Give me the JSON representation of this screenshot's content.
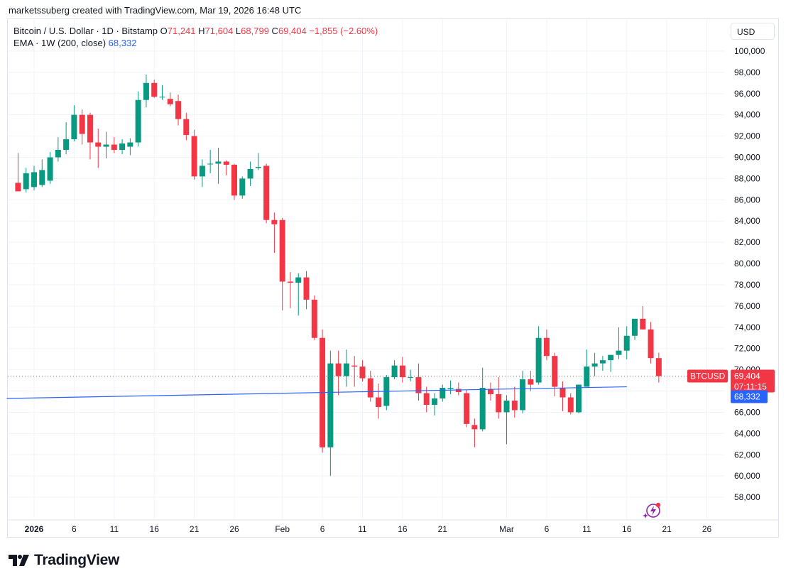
{
  "header": {
    "caption": "marketssuberg created with TradingView.com, Mar 19, 2026 16:48 UTC"
  },
  "legend": {
    "symbol": "Bitcoin / U.S. Dollar · 1D · Bitstamp",
    "o_label": "O",
    "o_value": "71,241",
    "h_label": "H",
    "h_value": "71,604",
    "l_label": "L",
    "l_value": "68,799",
    "c_label": "C",
    "c_value": "69,404",
    "change": "−1,855 (−2.60%)",
    "ema_label": "EMA · 1W (200, close)",
    "ema_value": "68,332"
  },
  "currency_button": "USD",
  "price_tag": {
    "symbol": "BTCUSD",
    "price": "69,404",
    "countdown": "07:11:15"
  },
  "ema_tag": "68,332",
  "logo": {
    "text": "TradingView"
  },
  "colors": {
    "up": "#089981",
    "down": "#f23645",
    "ema": "#2962ff",
    "grid": "#f0f3fa",
    "text": "#131722"
  },
  "icons": {
    "logo": "tradingview-logo-icon",
    "assistant": "sparkle-bolt-icon"
  },
  "chart_data": {
    "type": "candlestick",
    "title": "Bitcoin / U.S. Dollar · 1D · Bitstamp",
    "ylim": [
      56000,
      101600
    ],
    "y_ticks": [
      "58,000",
      "60,000",
      "62,000",
      "64,000",
      "66,000",
      "68,000",
      "70,000",
      "72,000",
      "74,000",
      "76,000",
      "78,000",
      "80,000",
      "82,000",
      "84,000",
      "86,000",
      "88,000",
      "90,000",
      "92,000",
      "94,000",
      "96,000",
      "98,000",
      "100,000"
    ],
    "x_ticks": [
      {
        "label": "2026",
        "day": 0,
        "bold": true
      },
      {
        "label": "6",
        "day": 5
      },
      {
        "label": "11",
        "day": 10
      },
      {
        "label": "16",
        "day": 15
      },
      {
        "label": "21",
        "day": 20
      },
      {
        "label": "26",
        "day": 25
      },
      {
        "label": "Feb",
        "day": 31
      },
      {
        "label": "6",
        "day": 36
      },
      {
        "label": "11",
        "day": 41
      },
      {
        "label": "16",
        "day": 46
      },
      {
        "label": "21",
        "day": 51
      },
      {
        "label": "Mar",
        "day": 59
      },
      {
        "label": "6",
        "day": 64
      },
      {
        "label": "11",
        "day": 69
      },
      {
        "label": "16",
        "day": 74
      },
      {
        "label": "21",
        "day": 79
      },
      {
        "label": "26",
        "day": 84
      }
    ],
    "first_day": -2,
    "candles": [
      [
        87600,
        90400,
        86800,
        86800
      ],
      [
        87000,
        89000,
        86700,
        88500
      ],
      [
        87200,
        89200,
        86900,
        88600
      ],
      [
        87400,
        89800,
        87200,
        88800
      ],
      [
        87800,
        90500,
        87500,
        90000
      ],
      [
        90000,
        91900,
        89600,
        90700
      ],
      [
        90700,
        93300,
        90300,
        91700
      ],
      [
        91700,
        94900,
        91500,
        94000
      ],
      [
        94000,
        94500,
        91200,
        92200
      ],
      [
        94000,
        94200,
        89800,
        91400
      ],
      [
        91400,
        92700,
        89000,
        91000
      ],
      [
        91000,
        92400,
        89900,
        91200
      ],
      [
        91200,
        91900,
        90400,
        90700
      ],
      [
        90700,
        91700,
        90300,
        91300
      ],
      [
        91000,
        91800,
        90200,
        91400
      ],
      [
        91400,
        96200,
        91000,
        95400
      ],
      [
        95400,
        97800,
        94700,
        97000
      ],
      [
        97000,
        97300,
        95600,
        95700
      ],
      [
        95700,
        96800,
        95400,
        95700
      ],
      [
        95500,
        96100,
        94800,
        95000
      ],
      [
        95300,
        95900,
        93000,
        93600
      ],
      [
        93600,
        94200,
        91600,
        92100
      ],
      [
        92000,
        92600,
        87900,
        88200
      ],
      [
        88200,
        89800,
        87200,
        89200
      ],
      [
        89400,
        90700,
        88500,
        89400
      ],
      [
        89400,
        90900,
        87500,
        89600
      ],
      [
        89600,
        89700,
        88300,
        89300
      ],
      [
        89300,
        89400,
        86000,
        86400
      ],
      [
        86400,
        88200,
        86100,
        88000
      ],
      [
        88000,
        89600,
        87300,
        88900
      ],
      [
        89000,
        90400,
        88800,
        89100
      ],
      [
        89200,
        89400,
        83800,
        84100
      ],
      [
        84100,
        84800,
        81000,
        83700
      ],
      [
        84100,
        84300,
        75600,
        78300
      ],
      [
        78300,
        79200,
        75800,
        78200
      ],
      [
        78200,
        79100,
        75100,
        78700
      ],
      [
        78700,
        79300,
        75700,
        76600
      ],
      [
        76600,
        77000,
        72800,
        73000
      ],
      [
        73000,
        73800,
        62200,
        62700
      ],
      [
        62700,
        71800,
        60000,
        70600
      ],
      [
        70600,
        71800,
        67600,
        69400
      ],
      [
        69400,
        71900,
        68400,
        70600
      ],
      [
        70400,
        71300,
        68400,
        70300
      ],
      [
        70300,
        70900,
        68900,
        69200
      ],
      [
        69200,
        69900,
        67000,
        67400
      ],
      [
        67400,
        68700,
        65400,
        66500
      ],
      [
        66600,
        69500,
        66200,
        69300
      ],
      [
        69300,
        70900,
        69100,
        70400
      ],
      [
        70400,
        71200,
        68800,
        69300
      ],
      [
        69300,
        70000,
        68900,
        69300
      ],
      [
        69300,
        70600,
        67100,
        67800
      ],
      [
        67800,
        68400,
        66000,
        66700
      ],
      [
        66700,
        67800,
        65700,
        67300
      ],
      [
        67300,
        68600,
        67000,
        68300
      ],
      [
        68200,
        69000,
        67700,
        68300
      ],
      [
        68200,
        68800,
        67600,
        67900
      ],
      [
        67800,
        68100,
        64600,
        64900
      ],
      [
        64800,
        65400,
        62700,
        64400
      ],
      [
        64400,
        70200,
        64200,
        68300
      ],
      [
        68200,
        68800,
        67100,
        67700
      ],
      [
        67700,
        69300,
        65400,
        66000
      ],
      [
        66000,
        67600,
        63000,
        67100
      ],
      [
        67100,
        68400,
        65500,
        66200
      ],
      [
        66200,
        69900,
        65900,
        69100
      ],
      [
        69100,
        69900,
        68000,
        68600
      ],
      [
        68800,
        74100,
        68600,
        73000
      ],
      [
        73000,
        73800,
        70900,
        71300
      ],
      [
        71300,
        71600,
        67500,
        68400
      ],
      [
        68300,
        68900,
        66100,
        67400
      ],
      [
        67400,
        67800,
        65800,
        66000
      ],
      [
        66000,
        68600,
        65900,
        68600
      ],
      [
        68400,
        71900,
        68400,
        70300
      ],
      [
        70300,
        71600,
        69400,
        70600
      ],
      [
        70600,
        71300,
        69900,
        70900
      ],
      [
        70900,
        71400,
        69800,
        71400
      ],
      [
        71400,
        74000,
        71000,
        71800
      ],
      [
        71800,
        74100,
        71000,
        73200
      ],
      [
        73200,
        74800,
        72800,
        74800
      ],
      [
        74800,
        76000,
        73800,
        73800
      ],
      [
        73800,
        74500,
        70600,
        71100
      ],
      [
        71100,
        71600,
        68800,
        69400
      ]
    ],
    "ema": {
      "name": "EMA · 1W (200, close)",
      "start_day": -2,
      "start_value": 67300,
      "end_day": 74,
      "end_value": 68400
    },
    "last_price": 69404
  }
}
